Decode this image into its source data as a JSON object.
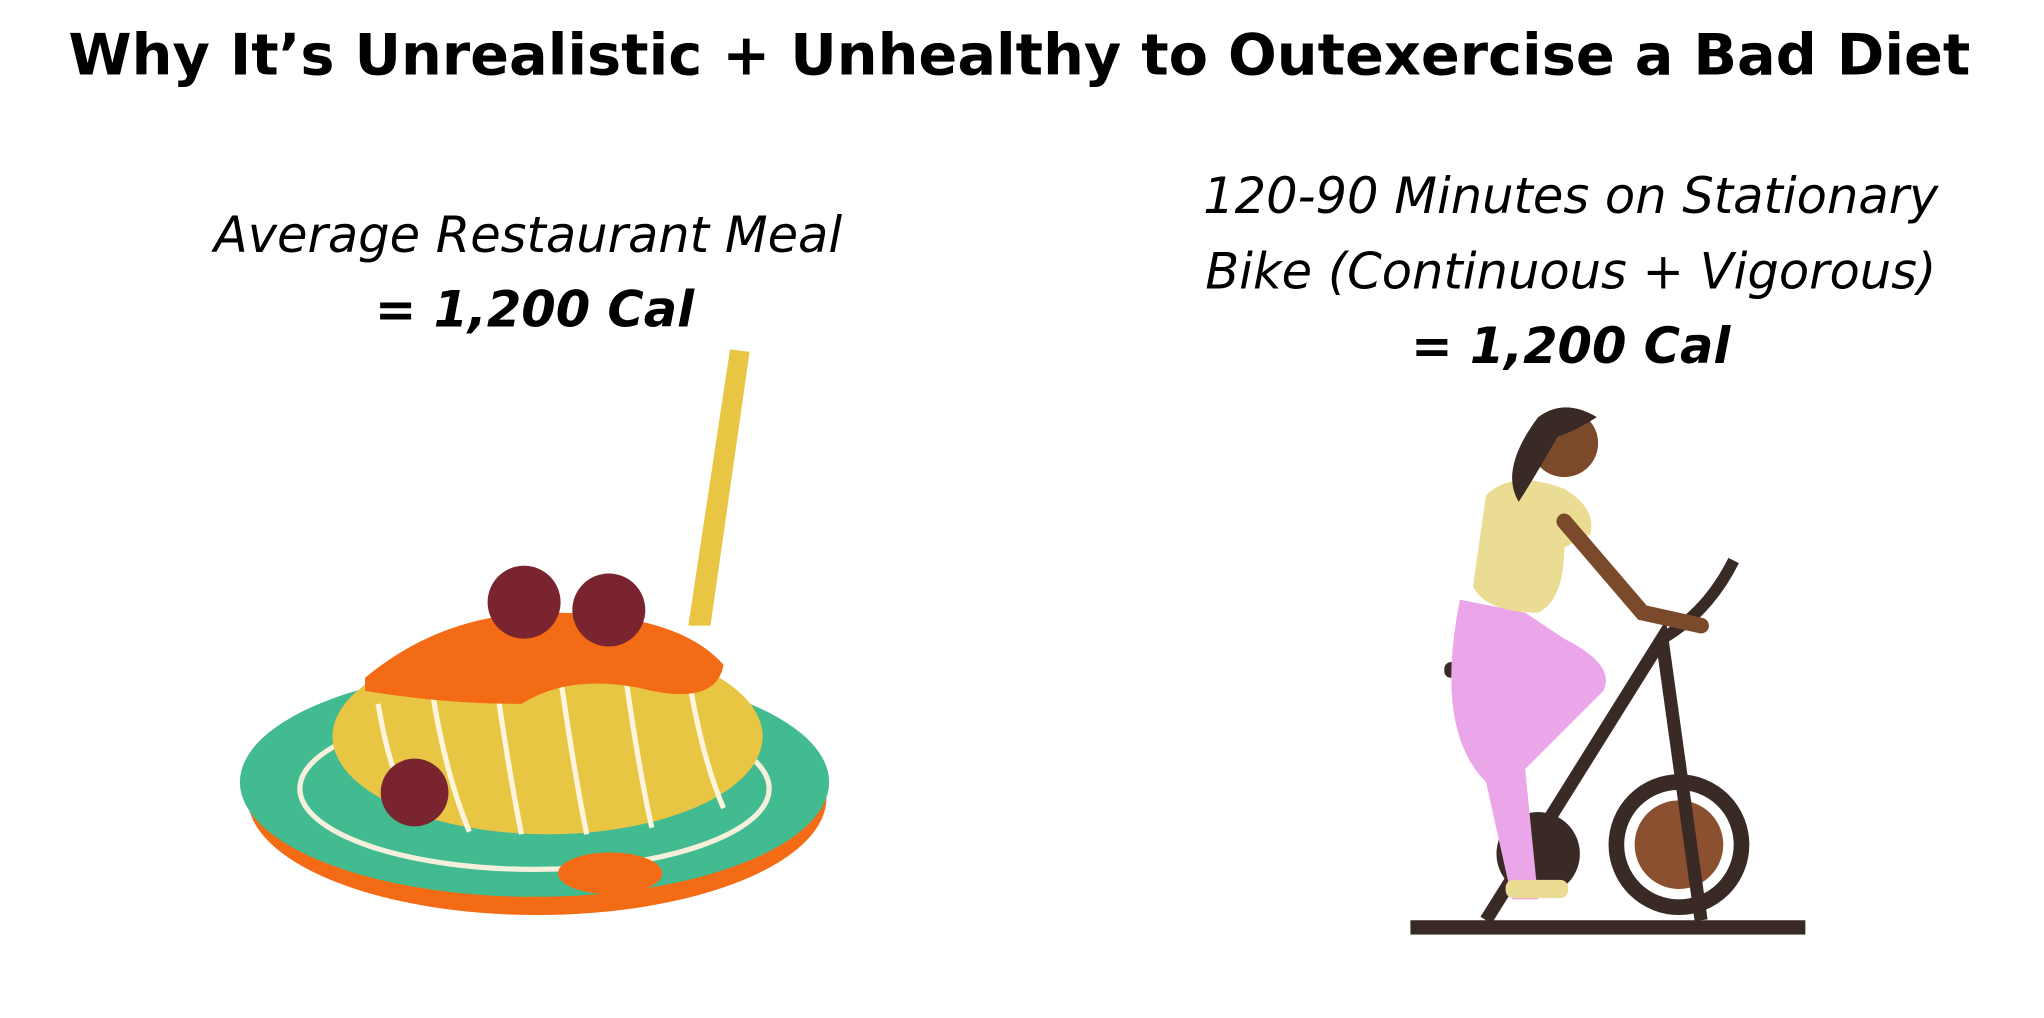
{
  "title": "Why It’s Unrealistic + Unhealthy to Outexercise a Bad Diet",
  "panels": [
    {
      "caption": [
        "Average Restaurant Meal"
      ],
      "calories": "= 1,200 Cal"
    },
    {
      "caption": [
        "120-90 Minutes on Stationary",
        "Bike (Continuous + Vigorous)"
      ],
      "calories": "= 1,200 Cal"
    }
  ]
}
